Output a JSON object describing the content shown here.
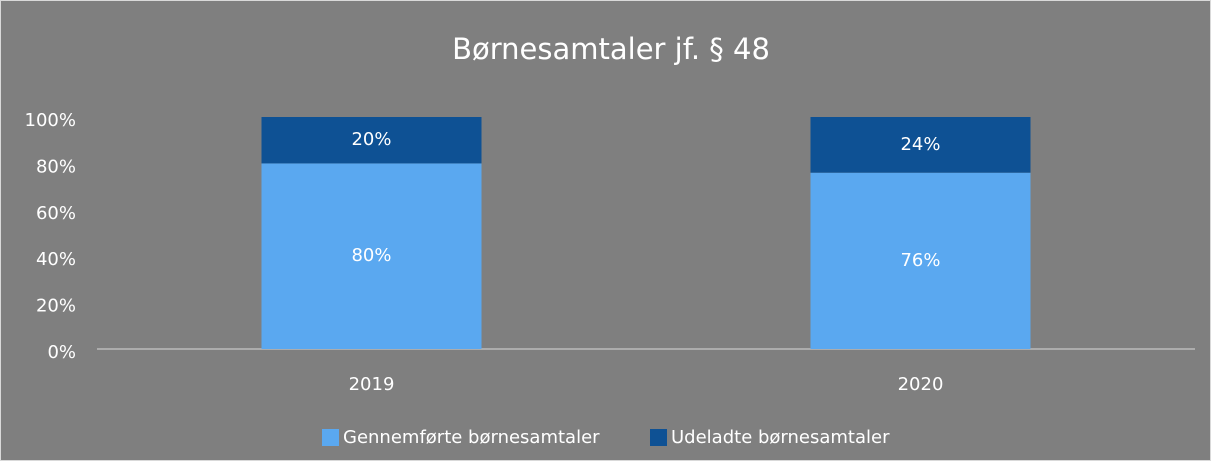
{
  "chart_data": {
    "type": "stacked_bar",
    "title": "Børnesamtaler jf. § 48",
    "categories": [
      "2019",
      "2020"
    ],
    "series": [
      {
        "name": "Gennemførte børnesamtaler",
        "color": "#5aa8f0",
        "values": [
          80,
          76
        ],
        "value_labels": [
          "80%",
          "76%"
        ]
      },
      {
        "name": "Udeladte børnesamtaler",
        "color": "#0e5194",
        "values": [
          20,
          24
        ],
        "value_labels": [
          "20%",
          "24%"
        ]
      }
    ],
    "ylim": [
      0,
      100
    ],
    "yticks": [
      {
        "value": 0,
        "label": "0%"
      },
      {
        "value": 20,
        "label": "20%"
      },
      {
        "value": 40,
        "label": "40%"
      },
      {
        "value": 60,
        "label": "60%"
      },
      {
        "value": 80,
        "label": "80%"
      },
      {
        "value": 100,
        "label": "100%"
      }
    ],
    "legend": "bottom"
  }
}
